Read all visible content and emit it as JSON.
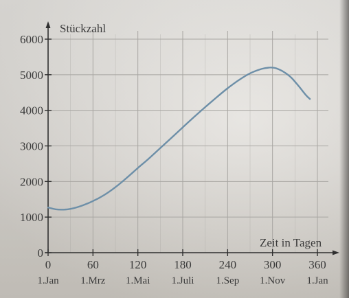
{
  "chart_data": {
    "type": "line",
    "ylabel": "Stückzahl",
    "xlabel": "Zeit in Tagen",
    "x_ticks": [
      0,
      60,
      120,
      180,
      240,
      300,
      360
    ],
    "x_date_labels": [
      "1.Jan",
      "1.Mrz",
      "1.Mai",
      "1.Juli",
      "1.Sep",
      "1.Nov",
      "1.Jan"
    ],
    "y_ticks": [
      0,
      1000,
      2000,
      3000,
      4000,
      5000,
      6000
    ],
    "xlim": [
      0,
      360
    ],
    "ylim": [
      0,
      6000
    ],
    "grid": true,
    "series": [
      {
        "x": [
          0,
          10,
          20,
          30,
          45,
          60,
          75,
          90,
          105,
          120,
          135,
          150,
          165,
          180,
          195,
          210,
          225,
          240,
          255,
          270,
          285,
          295,
          300,
          305,
          315,
          325,
          335,
          345,
          350
        ],
        "values": [
          1270,
          1220,
          1210,
          1230,
          1320,
          1450,
          1620,
          1840,
          2100,
          2380,
          2650,
          2940,
          3230,
          3520,
          3810,
          4090,
          4360,
          4620,
          4850,
          5040,
          5160,
          5200,
          5200,
          5180,
          5080,
          4920,
          4680,
          4420,
          4320
        ]
      }
    ],
    "colors": {
      "line": "#6d8fa8",
      "grid": "#a8a6a2",
      "axis": "#2f2f2f"
    }
  }
}
